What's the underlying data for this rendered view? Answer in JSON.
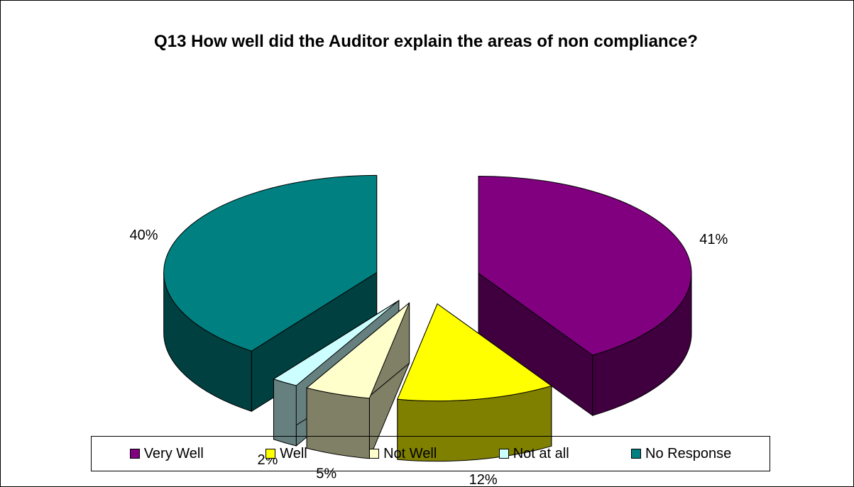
{
  "chart_data": {
    "type": "pie3d",
    "title": "Q13 How well did the Auditor explain the areas of non compliance?",
    "categories": [
      "Very Well",
      "Well",
      "Not Well",
      "Not at all",
      "No Response"
    ],
    "values": [
      41,
      12,
      5,
      2,
      40
    ],
    "value_labels": [
      "41%",
      "12%",
      "5%",
      "2%",
      "40%"
    ],
    "colors": [
      "#800080",
      "#ffff00",
      "#ffffcc",
      "#ccffff",
      "#008080"
    ],
    "legend": "bottom"
  }
}
